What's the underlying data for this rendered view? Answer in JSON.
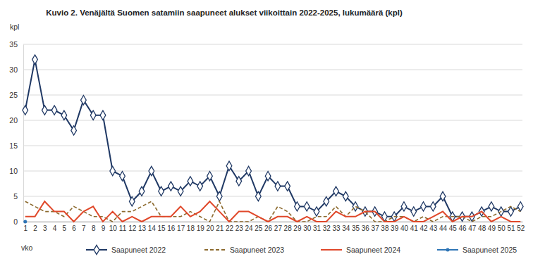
{
  "chart_data": {
    "type": "line",
    "title": "Kuvio 2. Venäjältä Suomen satamiin saapuneet alukset viikoittain 2022-2025, lukumäärä (kpl)",
    "y_label": "kpl",
    "x_label": "vko",
    "categories": [
      "1",
      "2",
      "3",
      "4",
      "5",
      "6",
      "7",
      "8",
      "9",
      "10",
      "11",
      "12",
      "13",
      "14",
      "15",
      "16",
      "17",
      "18",
      "19",
      "20",
      "21",
      "22",
      "23",
      "24",
      "25",
      "26",
      "27",
      "28",
      "29",
      "30",
      "31",
      "32",
      "33",
      "34",
      "35",
      "36",
      "37",
      "38",
      "39",
      "40",
      "41",
      "42",
      "43",
      "44",
      "45",
      "46",
      "47",
      "48",
      "49",
      "50",
      "51",
      "52"
    ],
    "ylim": [
      0,
      35
    ],
    "yticks": [
      0,
      5,
      10,
      15,
      20,
      25,
      30,
      35
    ],
    "grid": true,
    "legend": "bottom",
    "series": [
      {
        "name": "Saapuneet 2022",
        "color": "#1f3864",
        "marker": "diamond",
        "line_style": "solid",
        "values": [
          22,
          32,
          22,
          22,
          21,
          18,
          24,
          21,
          21,
          10,
          9,
          4,
          6,
          10,
          6,
          7,
          6,
          8,
          7,
          9,
          5,
          11,
          8,
          10,
          5,
          9,
          7,
          7,
          3,
          3,
          2,
          4,
          6,
          5,
          3,
          2,
          2,
          1,
          1,
          3,
          2,
          3,
          3,
          5,
          1,
          1,
          1,
          2,
          3,
          2,
          2,
          3
        ]
      },
      {
        "name": "Saapuneet 2023",
        "color": "#8c6a2e",
        "marker": "none",
        "line_style": "dashed",
        "values": [
          4,
          3,
          2,
          2,
          1,
          3,
          2,
          1,
          1,
          0,
          2,
          2,
          3,
          4,
          1,
          1,
          1,
          2,
          1,
          0,
          4,
          0,
          0,
          0,
          1,
          0,
          3,
          2,
          0,
          0,
          1,
          1,
          3,
          1,
          3,
          2,
          0,
          0,
          1,
          1,
          0,
          1,
          0,
          1,
          1,
          1,
          0,
          1,
          1,
          2,
          3,
          2
        ]
      },
      {
        "name": "Saapuneet 2024",
        "color": "#e0482a",
        "marker": "none",
        "line_style": "solid",
        "values": [
          1,
          1,
          4,
          2,
          2,
          0,
          2,
          3,
          0,
          2,
          0,
          1,
          0,
          1,
          1,
          1,
          3,
          1,
          2,
          4,
          2,
          0,
          2,
          2,
          1,
          0,
          1,
          1,
          0,
          1,
          0,
          0,
          2,
          1,
          1,
          2,
          2,
          0,
          0,
          1,
          0,
          0,
          1,
          2,
          0,
          1,
          1,
          2,
          0,
          1,
          0,
          0
        ]
      },
      {
        "name": "Saapuneet 2025",
        "color": "#2e75b6",
        "marker": "circle",
        "line_style": "solid",
        "values": [
          0,
          null,
          null,
          null,
          null,
          null,
          null,
          null,
          null,
          null,
          null,
          null,
          null,
          null,
          null,
          null,
          null,
          null,
          null,
          null,
          null,
          null,
          null,
          null,
          null,
          null,
          null,
          null,
          null,
          null,
          null,
          null,
          null,
          null,
          null,
          null,
          null,
          null,
          null,
          null,
          null,
          null,
          null,
          null,
          null,
          null,
          null,
          null,
          null,
          null,
          null,
          null
        ]
      }
    ]
  }
}
